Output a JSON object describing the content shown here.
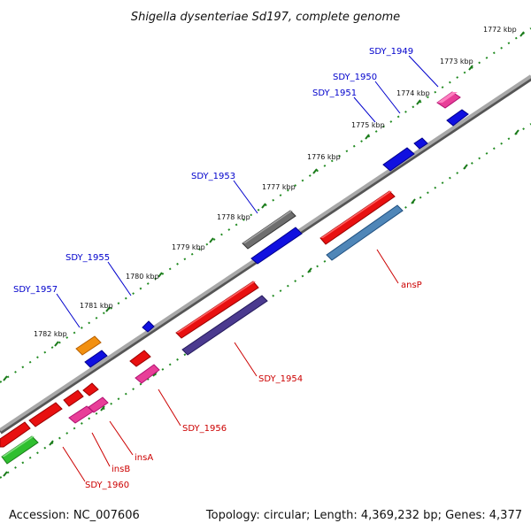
{
  "title": "Shigella dysenteriae Sd197, complete genome",
  "footer": {
    "accession": "Accession: NC_007606",
    "summary": "Topology: circular; Length: 4,369,232 bp; Genes: 4,377"
  },
  "colors": {
    "forward_label": "#0000cc",
    "reverse_label": "#cc0000",
    "backbone": "#888888",
    "tick_dots": "#228b22"
  },
  "ticks": [
    "1772 kbp",
    "1773 kbp",
    "1774 kbp",
    "1775 kbp",
    "1776 kbp",
    "1777 kbp",
    "1778 kbp",
    "1779 kbp",
    "1780 kbp",
    "1781 kbp",
    "1782 kbp"
  ],
  "forward_labels": [
    "SDY_1949",
    "SDY_1950",
    "SDY_1951",
    "SDY_1953",
    "SDY_1955",
    "SDY_1957"
  ],
  "reverse_labels": [
    "ansP",
    "SDY_1954",
    "SDY_1956",
    "insA",
    "insB",
    "SDY_1960"
  ]
}
